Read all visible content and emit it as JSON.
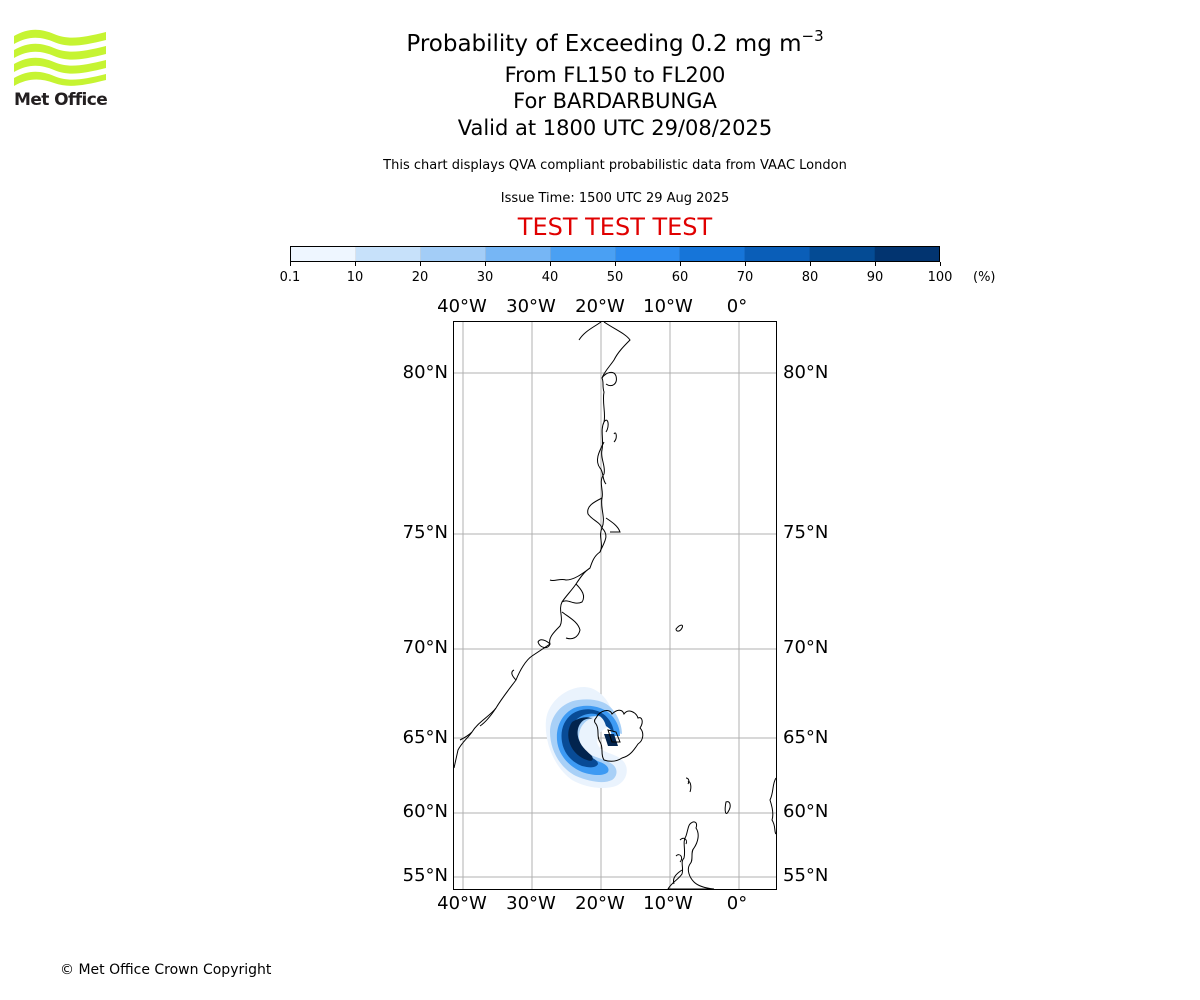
{
  "logo": {
    "text": "Met Office",
    "color": "#c6f432",
    "text_color": "#231f20"
  },
  "title": {
    "main": "Probability of Exceeding 0.2 mg m",
    "main_sup": "−3",
    "line2": "From FL150 to FL200",
    "line3": "For BARDARBUNGA",
    "line4": "Valid at 1800 UTC 29/08/2025"
  },
  "disclaimer": "This chart displays QVA compliant probabilistic data from VAAC London",
  "issue_time": "Issue Time: 1500 UTC 29 Aug 2025",
  "test_banner": {
    "text": "TEST TEST TEST",
    "color": "#e00000"
  },
  "colorbar": {
    "labels": [
      "0.1",
      "10",
      "20",
      "30",
      "40",
      "50",
      "60",
      "70",
      "80",
      "90",
      "100"
    ],
    "unit": "(%)",
    "colors": [
      "#eef6ff",
      "#c7e1fa",
      "#a3cdf7",
      "#76b6f5",
      "#4aa0f3",
      "#2d8cf0",
      "#1675d9",
      "#0a5eb8",
      "#044b94",
      "#023470"
    ]
  },
  "map": {
    "lon_labels": [
      "40°W",
      "30°W",
      "20°W",
      "10°W",
      "0°"
    ],
    "lat_labels": [
      "80°N",
      "75°N",
      "70°N",
      "65°N",
      "60°N",
      "55°N"
    ],
    "volcano": "BARDARBUNGA",
    "plume_max_probability_pct": 100
  },
  "copyright": "© Met Office Crown Copyright"
}
